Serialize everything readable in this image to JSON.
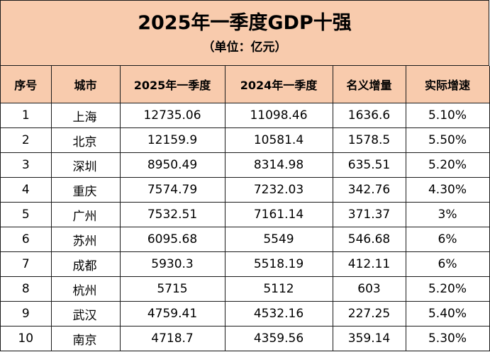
{
  "title": "2025年一季度GDP十强",
  "subtitle": "（单位：亿元）",
  "headers": [
    "序号",
    "城市",
    "2025年一季度",
    "2024年一季度",
    "名义增量",
    "实际增速"
  ],
  "rows": [
    [
      "1",
      "上海",
      "12735.06",
      "11098.46",
      "1636.6",
      "5.10%"
    ],
    [
      "2",
      "北京",
      "12159.9",
      "10581.4",
      "1578.5",
      "5.50%"
    ],
    [
      "3",
      "深圳",
      "8950.49",
      "8314.98",
      "635.51",
      "5.20%"
    ],
    [
      "4",
      "重庆",
      "7574.79",
      "7232.03",
      "342.76",
      "4.30%"
    ],
    [
      "5",
      "广州",
      "7532.51",
      "7161.14",
      "371.37",
      "3%"
    ],
    [
      "6",
      "苏州",
      "6095.68",
      "5549",
      "546.68",
      "6%"
    ],
    [
      "7",
      "成都",
      "5930.3",
      "5518.19",
      "412.11",
      "6%"
    ],
    [
      "8",
      "杭州",
      "5715",
      "5112",
      "603",
      "5.20%"
    ],
    [
      "9",
      "武汉",
      "4759.41",
      "4532.16",
      "227.25",
      "5.40%"
    ],
    [
      "10",
      "南京",
      "4718.7",
      "4359.56",
      "359.14",
      "5.30%"
    ]
  ],
  "colors": {
    "header_fill": "#f8cbad",
    "border": "#1a1a1a",
    "text": "#000000"
  }
}
